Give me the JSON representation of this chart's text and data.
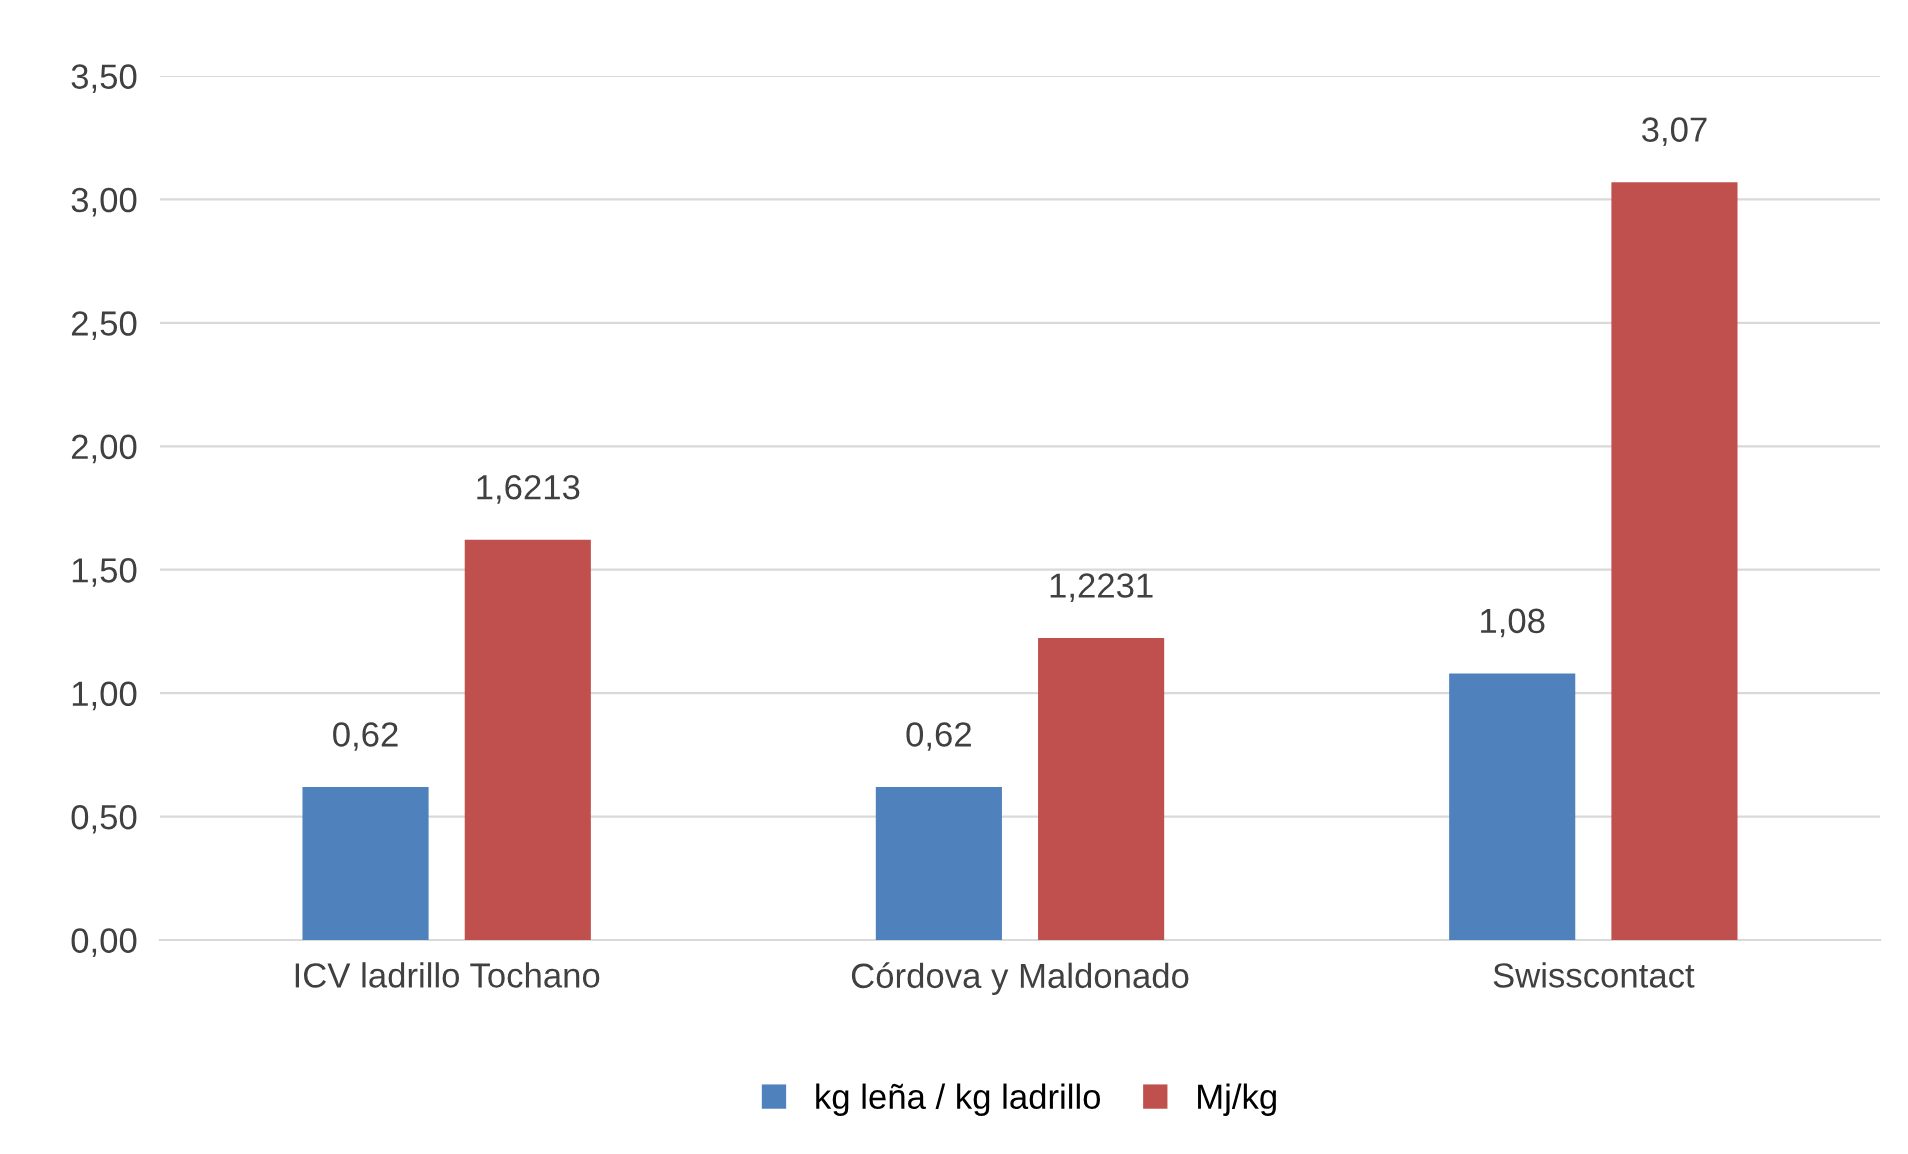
{
  "chart_data": {
    "type": "bar",
    "categories": [
      "ICV ladrillo Tochano",
      "Córdova y Maldonado",
      "Swisscontact"
    ],
    "series": [
      {
        "name": "kg leña / kg ladrillo",
        "color": "#4f81bd",
        "values": [
          0.62,
          0.62,
          1.08
        ],
        "value_labels": [
          "0,62",
          "0,62",
          "1,08"
        ]
      },
      {
        "name": "Mj/kg",
        "color": "#c0504d",
        "values": [
          1.6213,
          1.2231,
          3.07
        ],
        "value_labels": [
          "1,6213",
          "1,2231",
          "3,07"
        ]
      }
    ],
    "ylim": [
      0,
      3.5
    ],
    "yticks": [
      {
        "value": 0,
        "label": "0,00"
      },
      {
        "value": 0.5,
        "label": "0,50"
      },
      {
        "value": 1,
        "label": "1,00"
      },
      {
        "value": 1.5,
        "label": "1,50"
      },
      {
        "value": 2,
        "label": "2,00"
      },
      {
        "value": 2.5,
        "label": "2,50"
      },
      {
        "value": 3,
        "label": "3,00"
      },
      {
        "value": 3.5,
        "label": "3,50"
      }
    ],
    "grid": "y",
    "legend": "bottom"
  }
}
